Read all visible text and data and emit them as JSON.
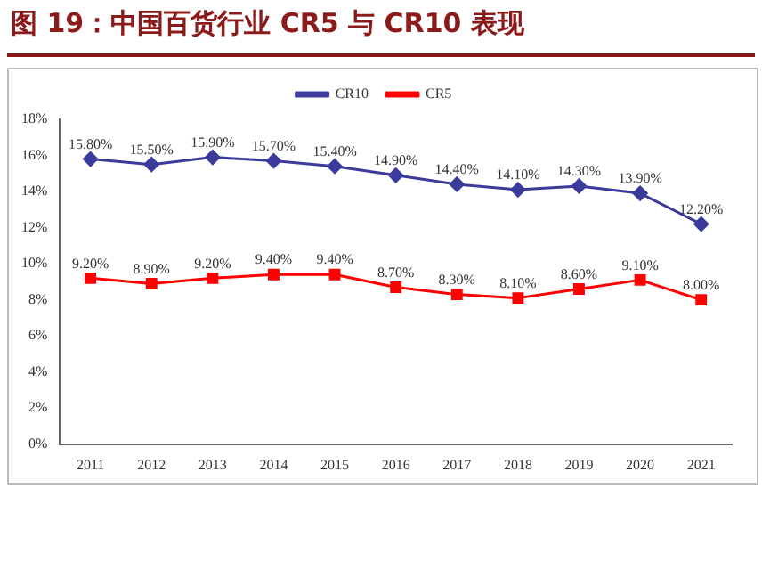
{
  "chart_data": {
    "type": "line",
    "title": "图 19：中国百货行业 CR5 与 CR10 表现",
    "categories": [
      "2011",
      "2012",
      "2013",
      "2014",
      "2015",
      "2016",
      "2017",
      "2018",
      "2019",
      "2020",
      "2021"
    ],
    "series": [
      {
        "name": "CR10",
        "color": "#3b3b9c",
        "marker": "diamond",
        "values": [
          15.8,
          15.5,
          15.9,
          15.7,
          15.4,
          14.9,
          14.4,
          14.1,
          14.3,
          13.9,
          12.2
        ],
        "value_labels": [
          "15.80%",
          "15.50%",
          "15.90%",
          "15.70%",
          "15.40%",
          "14.90%",
          "14.40%",
          "14.10%",
          "14.30%",
          "13.90%",
          "12.20%"
        ]
      },
      {
        "name": "CR5",
        "color": "#ff0000",
        "marker": "square",
        "values": [
          9.2,
          8.9,
          9.2,
          9.4,
          9.4,
          8.7,
          8.3,
          8.1,
          8.6,
          9.1,
          8.0
        ],
        "value_labels": [
          "9.20%",
          "8.90%",
          "9.20%",
          "9.40%",
          "9.40%",
          "8.70%",
          "8.30%",
          "8.10%",
          "8.60%",
          "9.10%",
          "8.00%"
        ]
      }
    ],
    "ylim": [
      0,
      18
    ],
    "yticks": [
      {
        "value": 0,
        "label": "0%"
      },
      {
        "value": 2,
        "label": "2%"
      },
      {
        "value": 4,
        "label": "4%"
      },
      {
        "value": 6,
        "label": "6%"
      },
      {
        "value": 8,
        "label": "8%"
      },
      {
        "value": 10,
        "label": "10%"
      },
      {
        "value": 12,
        "label": "12%"
      },
      {
        "value": 14,
        "label": "14%"
      },
      {
        "value": 16,
        "label": "16%"
      },
      {
        "value": 18,
        "label": "18%"
      }
    ],
    "legend": "top",
    "grid": false,
    "line_style": "solid"
  }
}
